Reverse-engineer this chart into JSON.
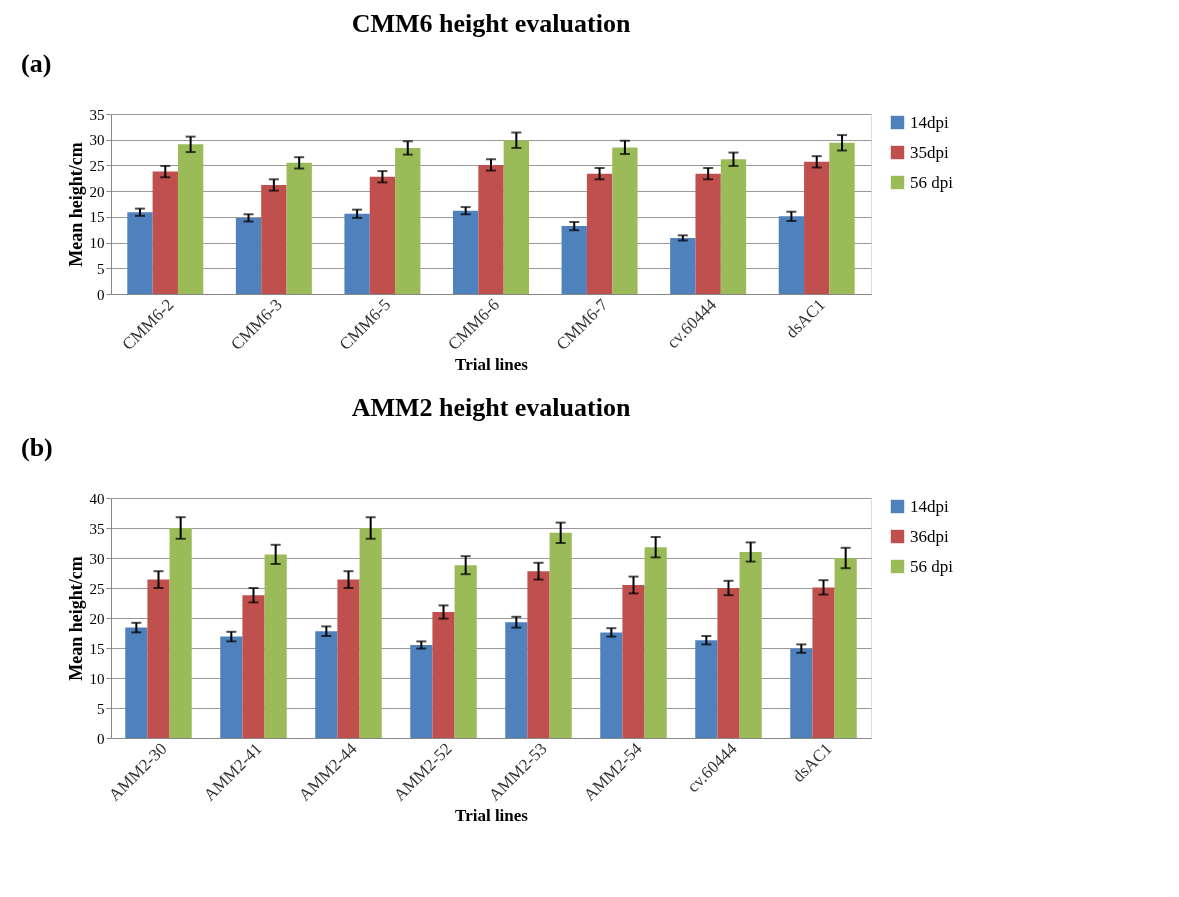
{
  "chart_data": [
    {
      "type": "bar",
      "title": "CMM6 height evaluation",
      "xlabel": "Trial lines",
      "ylabel": "Mean height/cm",
      "annotations": [
        "(a)"
      ],
      "categories": [
        "CMM6-2",
        "CMM6-3",
        "CMM6-5",
        "CMM6-6",
        "CMM6-7",
        "cv.60444",
        "dsAC1"
      ],
      "series": [
        {
          "name": "14dpi",
          "color": "#4f81bd",
          "values": [
            15.9,
            14.8,
            15.6,
            16.2,
            13.2,
            10.9,
            15.1
          ],
          "errors": [
            0.7,
            0.7,
            0.8,
            0.7,
            0.8,
            0.5,
            0.9
          ]
        },
        {
          "name": "35dpi",
          "color": "#c0504d",
          "values": [
            23.8,
            21.2,
            22.8,
            25.1,
            23.4,
            23.4,
            25.7
          ],
          "errors": [
            1.1,
            1.1,
            1.1,
            1.1,
            1.1,
            1.1,
            1.1
          ]
        },
        {
          "name": "56 dpi",
          "color": "#9bbb59",
          "values": [
            29.1,
            25.5,
            28.4,
            29.9,
            28.5,
            26.2,
            29.4
          ],
          "errors": [
            1.5,
            1.1,
            1.3,
            1.5,
            1.3,
            1.3,
            1.5
          ]
        }
      ],
      "ylim": [
        0,
        35
      ],
      "yticks": [
        0,
        5,
        10,
        15,
        20,
        25,
        30,
        35
      ],
      "grid": "y",
      "legend": "right"
    },
    {
      "type": "bar",
      "title": "AMM2 height evaluation",
      "xlabel": "Trial lines",
      "ylabel": "Mean  height/cm",
      "annotations": [
        "(b)"
      ],
      "categories": [
        "AMM2-30",
        "AMM2-41",
        "AMM2-44",
        "AMM2-52",
        "AMM2-53",
        "AMM2-54",
        "cv.60444",
        "dsAC1"
      ],
      "series": [
        {
          "name": "14dpi",
          "color": "#4f81bd",
          "values": [
            18.4,
            16.9,
            17.8,
            15.5,
            19.3,
            17.6,
            16.3,
            14.9
          ],
          "errors": [
            0.8,
            0.8,
            0.8,
            0.6,
            0.9,
            0.7,
            0.7,
            0.7
          ]
        },
        {
          "name": "36dpi",
          "color": "#c0504d",
          "values": [
            26.4,
            23.8,
            26.4,
            21.0,
            27.8,
            25.5,
            25.0,
            25.1
          ],
          "errors": [
            1.4,
            1.2,
            1.4,
            1.1,
            1.4,
            1.4,
            1.2,
            1.2
          ]
        },
        {
          "name": "56 dpi",
          "color": "#9bbb59",
          "values": [
            35.0,
            30.6,
            35.0,
            28.8,
            34.2,
            31.8,
            31.0,
            30.0
          ],
          "errors": [
            1.8,
            1.6,
            1.8,
            1.5,
            1.7,
            1.7,
            1.6,
            1.7
          ]
        }
      ],
      "ylim": [
        0,
        40
      ],
      "yticks": [
        0,
        5,
        10,
        15,
        20,
        25,
        30,
        35,
        40
      ],
      "grid": "y",
      "legend": "right"
    }
  ]
}
